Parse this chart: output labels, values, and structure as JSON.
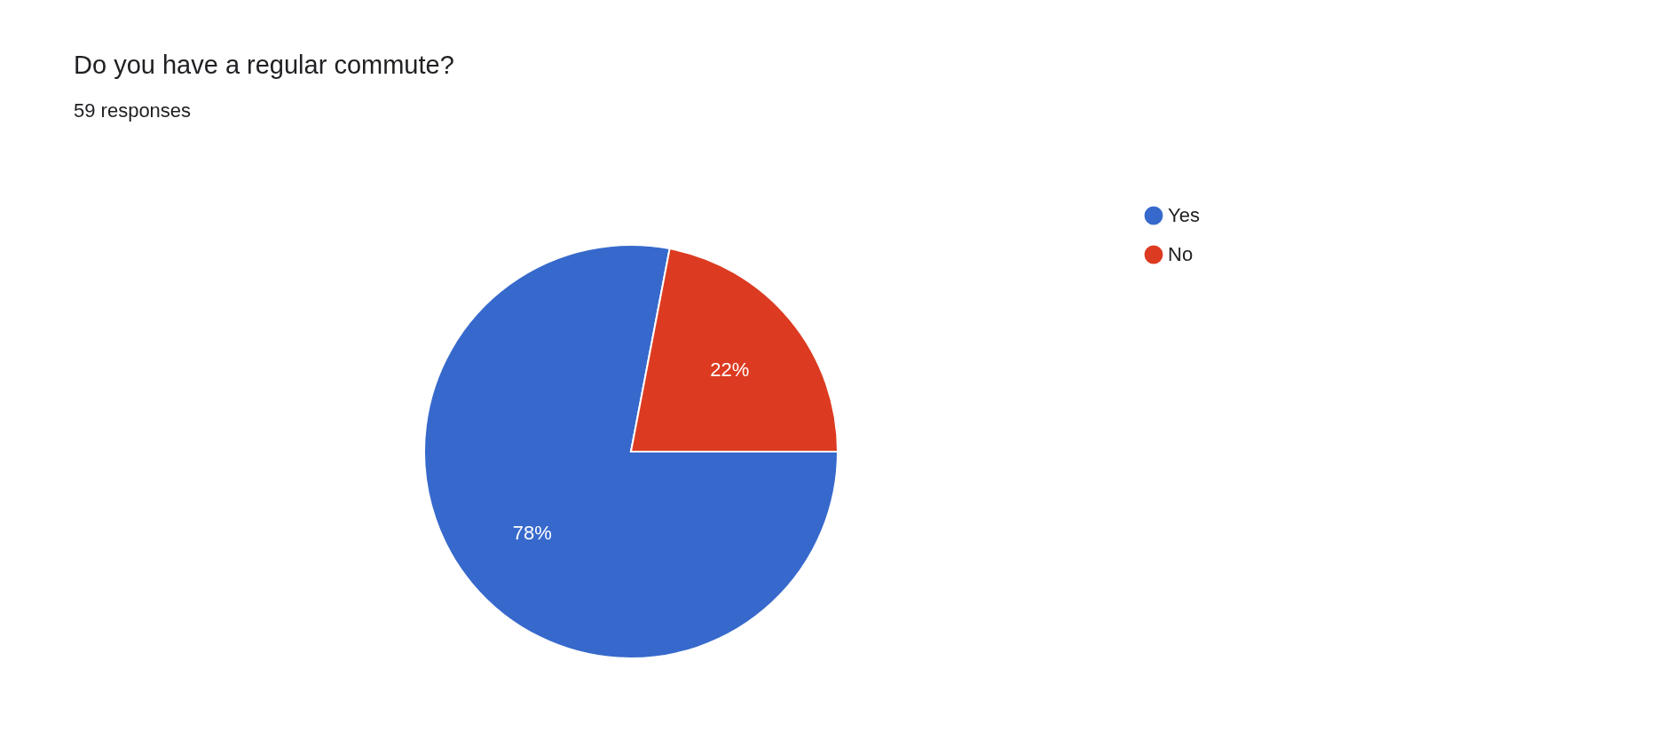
{
  "chart_data": {
    "type": "pie",
    "title": "Do you have a regular commute?",
    "subtitle": "59 responses",
    "categories": [
      "Yes",
      "No"
    ],
    "values": [
      78,
      22
    ],
    "colors": [
      "#3769cc",
      "#dc3b21"
    ],
    "value_labels": [
      "78%",
      "22%"
    ],
    "legend": "right"
  }
}
